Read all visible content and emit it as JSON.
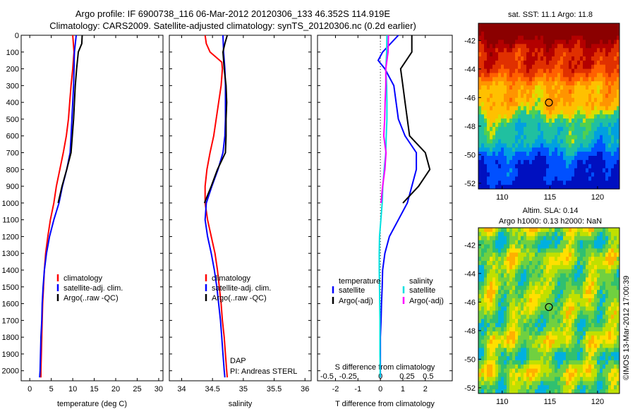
{
  "titles": {
    "line1": "Argo profile: IF 6900738_116 06-Mar-2012 20120306_133 46.352S 114.919E",
    "line2": "Climatology: CARS2009. Satellite-adjusted climatology: synTS_20120306.nc (0.2d earlier)"
  },
  "chart_data": [
    {
      "type": "line",
      "name": "temperature",
      "xlabel": "temperature (deg C)",
      "ylabel": "",
      "xlim": [
        -2,
        31
      ],
      "ylim": [
        2060,
        0
      ],
      "xticks": [
        0,
        5,
        10,
        15,
        20,
        25,
        30
      ],
      "yticks": [
        0,
        100,
        200,
        300,
        400,
        500,
        600,
        700,
        800,
        900,
        1000,
        1100,
        1200,
        1300,
        1400,
        1500,
        1600,
        1700,
        1800,
        1900,
        2000
      ],
      "legend": [
        "climatology",
        "satellite-adj. clim.",
        "Argo(..raw -QC)"
      ],
      "series": [
        {
          "name": "climatology",
          "color": "#ff0000",
          "points": [
            [
              10.0,
              0
            ],
            [
              10.3,
              100
            ],
            [
              10.0,
              200
            ],
            [
              9.6,
              300
            ],
            [
              9.3,
              400
            ],
            [
              9.0,
              500
            ],
            [
              8.5,
              600
            ],
            [
              7.8,
              700
            ],
            [
              7.0,
              800
            ],
            [
              6.2,
              900
            ],
            [
              5.6,
              1000
            ],
            [
              4.8,
              1100
            ],
            [
              4.2,
              1200
            ],
            [
              3.7,
              1300
            ],
            [
              3.4,
              1400
            ],
            [
              3.2,
              1500
            ],
            [
              3.0,
              1600
            ],
            [
              2.9,
              1700
            ],
            [
              2.8,
              1800
            ],
            [
              2.7,
              1900
            ],
            [
              2.6,
              2000
            ],
            [
              2.6,
              2040
            ]
          ]
        },
        {
          "name": "satellite-adj. clim.",
          "color": "#0000ff",
          "points": [
            [
              10.8,
              0
            ],
            [
              10.4,
              100
            ],
            [
              10.3,
              200
            ],
            [
              10.2,
              300
            ],
            [
              10.0,
              400
            ],
            [
              9.8,
              500
            ],
            [
              9.6,
              600
            ],
            [
              9.4,
              700
            ],
            [
              8.6,
              800
            ],
            [
              7.6,
              900
            ],
            [
              6.8,
              1000
            ],
            [
              5.6,
              1100
            ],
            [
              4.6,
              1200
            ],
            [
              3.9,
              1300
            ],
            [
              3.4,
              1400
            ],
            [
              3.1,
              1500
            ],
            [
              2.9,
              1600
            ],
            [
              2.8,
              1700
            ],
            [
              2.6,
              1800
            ],
            [
              2.5,
              1900
            ],
            [
              2.4,
              2000
            ],
            [
              2.3,
              2040
            ]
          ]
        },
        {
          "name": "Argo(..raw -QC)",
          "color": "#000000",
          "points": [
            [
              12.2,
              0
            ],
            [
              12.1,
              50
            ],
            [
              11.3,
              100
            ],
            [
              10.9,
              200
            ],
            [
              10.6,
              300
            ],
            [
              10.4,
              400
            ],
            [
              10.2,
              500
            ],
            [
              9.9,
              600
            ],
            [
              9.6,
              700
            ],
            [
              8.6,
              800
            ],
            [
              7.5,
              900
            ],
            [
              6.6,
              1000
            ]
          ]
        }
      ]
    },
    {
      "type": "line",
      "name": "salinity",
      "xlabel": "salinity",
      "ylabel": "",
      "xlim": [
        33.8,
        36.1
      ],
      "ylim": [
        2060,
        0
      ],
      "xticks": [
        34,
        34.5,
        35,
        35.5,
        36
      ],
      "legend": [
        "climatology",
        "satellite-adj. clim.",
        "Argo(..raw -QC)"
      ],
      "annotations": [
        "DAP",
        "PI: Andreas STERL"
      ],
      "series": [
        {
          "name": "climatology",
          "color": "#ff0000",
          "points": [
            [
              34.38,
              0
            ],
            [
              34.4,
              50
            ],
            [
              34.46,
              100
            ],
            [
              34.65,
              160
            ],
            [
              34.66,
              200
            ],
            [
              34.64,
              300
            ],
            [
              34.6,
              400
            ],
            [
              34.56,
              500
            ],
            [
              34.52,
              600
            ],
            [
              34.46,
              700
            ],
            [
              34.41,
              800
            ],
            [
              34.38,
              900
            ],
            [
              34.38,
              1000
            ],
            [
              34.42,
              1100
            ],
            [
              34.48,
              1200
            ],
            [
              34.54,
              1300
            ],
            [
              34.58,
              1400
            ],
            [
              34.61,
              1500
            ],
            [
              34.64,
              1600
            ],
            [
              34.66,
              1700
            ],
            [
              34.69,
              1800
            ],
            [
              34.71,
              1900
            ],
            [
              34.73,
              2000
            ],
            [
              34.74,
              2040
            ]
          ]
        },
        {
          "name": "satellite-adj. clim.",
          "color": "#0000ff",
          "points": [
            [
              34.67,
              0
            ],
            [
              34.68,
              100
            ],
            [
              34.7,
              200
            ],
            [
              34.71,
              300
            ],
            [
              34.71,
              400
            ],
            [
              34.71,
              500
            ],
            [
              34.7,
              600
            ],
            [
              34.67,
              700
            ],
            [
              34.59,
              800
            ],
            [
              34.49,
              900
            ],
            [
              34.4,
              1000
            ],
            [
              34.38,
              1100
            ],
            [
              34.42,
              1200
            ],
            [
              34.48,
              1300
            ],
            [
              34.53,
              1400
            ],
            [
              34.57,
              1500
            ],
            [
              34.6,
              1600
            ],
            [
              34.63,
              1700
            ],
            [
              34.65,
              1800
            ],
            [
              34.67,
              1900
            ],
            [
              34.69,
              2000
            ],
            [
              34.7,
              2040
            ]
          ]
        },
        {
          "name": "Argo(..raw -QC)",
          "color": "#000000",
          "points": [
            [
              34.74,
              0
            ],
            [
              34.7,
              50
            ],
            [
              34.67,
              100
            ],
            [
              34.69,
              200
            ],
            [
              34.72,
              300
            ],
            [
              34.73,
              400
            ],
            [
              34.72,
              500
            ],
            [
              34.72,
              600
            ],
            [
              34.71,
              700
            ],
            [
              34.58,
              800
            ],
            [
              34.48,
              900
            ],
            [
              34.37,
              1000
            ]
          ]
        }
      ]
    },
    {
      "type": "line",
      "name": "difference",
      "xlabel": "T difference from climatology",
      "xlabel_top": "S difference from climatology",
      "ylabel": "",
      "xlim": [
        -2.8,
        3.2
      ],
      "ylim": [
        2060,
        0
      ],
      "xticks": [
        -2,
        -1,
        0,
        1,
        2
      ],
      "xticks_s": [
        "-0.5",
        "-0.25",
        "0",
        "0.25",
        "0.5"
      ],
      "legend_headers": [
        "temperature",
        "salinity"
      ],
      "legend": [
        "satellite",
        "Argo(-adj)",
        "satellite",
        "Argo(-adj)"
      ],
      "series": [
        {
          "name": "T satellite",
          "color": "#0000ff",
          "points": [
            [
              0.8,
              0
            ],
            [
              0.1,
              100
            ],
            [
              -0.1,
              150
            ],
            [
              0.2,
              200
            ],
            [
              0.6,
              300
            ],
            [
              0.7,
              400
            ],
            [
              0.8,
              500
            ],
            [
              1.1,
              600
            ],
            [
              1.6,
              700
            ],
            [
              1.6,
              800
            ],
            [
              1.4,
              900
            ],
            [
              1.2,
              1000
            ],
            [
              0.8,
              1100
            ],
            [
              0.4,
              1200
            ],
            [
              0.2,
              1300
            ],
            [
              0.1,
              1400
            ],
            [
              0.08,
              1500
            ],
            [
              0.05,
              1600
            ],
            [
              0.03,
              1700
            ],
            [
              0.0,
              1800
            ],
            [
              0.0,
              1900
            ],
            [
              0.0,
              2000
            ],
            [
              0.0,
              2040
            ]
          ]
        },
        {
          "name": "T Argo(-adj)",
          "color": "#000000",
          "points": [
            [
              1.4,
              0
            ],
            [
              1.4,
              100
            ],
            [
              0.9,
              200
            ],
            [
              1.0,
              300
            ],
            [
              1.1,
              400
            ],
            [
              1.2,
              500
            ],
            [
              1.3,
              600
            ],
            [
              2.0,
              700
            ],
            [
              2.2,
              800
            ],
            [
              1.7,
              900
            ],
            [
              1.0,
              1000
            ]
          ]
        },
        {
          "name": "S satellite",
          "color": "#00e0e0",
          "points": [
            [
              0.29,
              0
            ],
            [
              0.28,
              100
            ],
            [
              0.24,
              200
            ],
            [
              0.28,
              300
            ],
            [
              0.29,
              400
            ],
            [
              0.29,
              500
            ],
            [
              0.26,
              600
            ],
            [
              0.24,
              700
            ],
            [
              0.17,
              800
            ],
            [
              0.11,
              900
            ],
            [
              0.08,
              1000
            ],
            [
              0.02,
              1100
            ],
            [
              -0.04,
              1200
            ],
            [
              -0.05,
              1300
            ],
            [
              -0.05,
              1400
            ],
            [
              -0.04,
              1500
            ],
            [
              -0.03,
              1600
            ],
            [
              -0.02,
              1700
            ],
            [
              -0.02,
              1800
            ],
            [
              -0.02,
              1900
            ],
            [
              -0.01,
              2000
            ],
            [
              -0.01,
              2040
            ]
          ]
        },
        {
          "name": "S Argo(-adj)",
          "color": "#ff00ff",
          "points": [
            [
              0.36,
              0
            ],
            [
              0.34,
              100
            ],
            [
              0.24,
              200
            ],
            [
              0.24,
              300
            ],
            [
              0.21,
              400
            ],
            [
              0.19,
              500
            ],
            [
              0.15,
              600
            ],
            [
              0.25,
              700
            ],
            [
              0.2,
              800
            ],
            [
              0.1,
              900
            ],
            [
              0.03,
              1000
            ]
          ]
        }
      ]
    },
    {
      "type": "heatmap",
      "name": "sst-map",
      "title": "sat. SST: 11.1  Argo: 11.8",
      "xlim": [
        107.5,
        122.3
      ],
      "ylim": [
        -52.4,
        -40.8
      ],
      "xticks": [
        110,
        115,
        120
      ],
      "yticks": [
        -42,
        -44,
        -46,
        -48,
        -50,
        -52
      ],
      "marker": [
        114.9,
        -46.35
      ]
    },
    {
      "type": "heatmap",
      "name": "sla-map",
      "title": "Altim. SLA: 0.14",
      "subtitle": "Argo h1000: 0.13 h2000: NaN",
      "xlim": [
        107.5,
        122.3
      ],
      "ylim": [
        -52.4,
        -40.8
      ],
      "xticks": [
        110,
        115,
        120
      ],
      "yticks": [
        -42,
        -44,
        -46,
        -48,
        -50,
        -52
      ],
      "marker": [
        114.9,
        -46.35
      ],
      "side_label": "©IMOS 13-Mar-2012 17:00:39"
    }
  ]
}
